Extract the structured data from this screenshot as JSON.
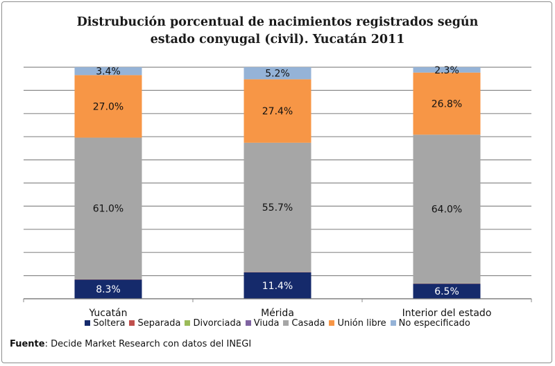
{
  "title_line1": "Distrubución porcentual de nacimientos registrados según",
  "title_line2": "estado conyugal (civil). Yucatán 2011",
  "source_label": "Fuente",
  "source_text": ": Decide Market Research con datos del INEGI",
  "legend": [
    {
      "name": "Soltera",
      "color": "#152a6b"
    },
    {
      "name": "Separada",
      "color": "#c0504d"
    },
    {
      "name": "Divorciada",
      "color": "#9bbb59"
    },
    {
      "name": "Viuda",
      "color": "#7f63a1"
    },
    {
      "name": "Casada",
      "color": "#a6a6a6"
    },
    {
      "name": "Unión libre",
      "color": "#f79646"
    },
    {
      "name": "No especificado",
      "color": "#95b3d7"
    }
  ],
  "chart_data": {
    "type": "bar",
    "stacked": true,
    "percent_stacked": true,
    "title": "Distrubución porcentual de nacimientos registrados según estado conyugal (civil). Yucatán 2011",
    "categories": [
      "Yucatán",
      "Mérida",
      "Interior del estado"
    ],
    "series": [
      {
        "name": "Soltera",
        "color": "#152a6b",
        "values": [
          8.3,
          11.4,
          6.5
        ],
        "labels": [
          "8.3%",
          "11.4%",
          "6.5%"
        ]
      },
      {
        "name": "Separada",
        "color": "#c0504d",
        "values": [
          0.1,
          0.1,
          0.1
        ],
        "labels": [
          "",
          "",
          ""
        ]
      },
      {
        "name": "Divorciada",
        "color": "#9bbb59",
        "values": [
          0.1,
          0.1,
          0.1
        ],
        "labels": [
          "",
          "",
          ""
        ]
      },
      {
        "name": "Viuda",
        "color": "#7f63a1",
        "values": [
          0.1,
          0.1,
          0.1
        ],
        "labels": [
          "",
          "",
          ""
        ]
      },
      {
        "name": "Casada",
        "color": "#a6a6a6",
        "values": [
          61.0,
          55.7,
          64.0
        ],
        "labels": [
          "61.0%",
          "55.7%",
          "64.0%"
        ]
      },
      {
        "name": "Unión libre",
        "color": "#f79646",
        "values": [
          27.0,
          27.4,
          26.8
        ],
        "labels": [
          "27.0%",
          "27.4%",
          "26.8%"
        ]
      },
      {
        "name": "No especificado",
        "color": "#95b3d7",
        "values": [
          3.4,
          5.2,
          2.3
        ],
        "labels": [
          "3.4%",
          "5.2%",
          "2.3%"
        ]
      }
    ],
    "ylim": [
      0,
      100
    ],
    "gridlines": 10,
    "grid": true,
    "legend_position": "bottom",
    "xlabel": "",
    "ylabel": ""
  }
}
